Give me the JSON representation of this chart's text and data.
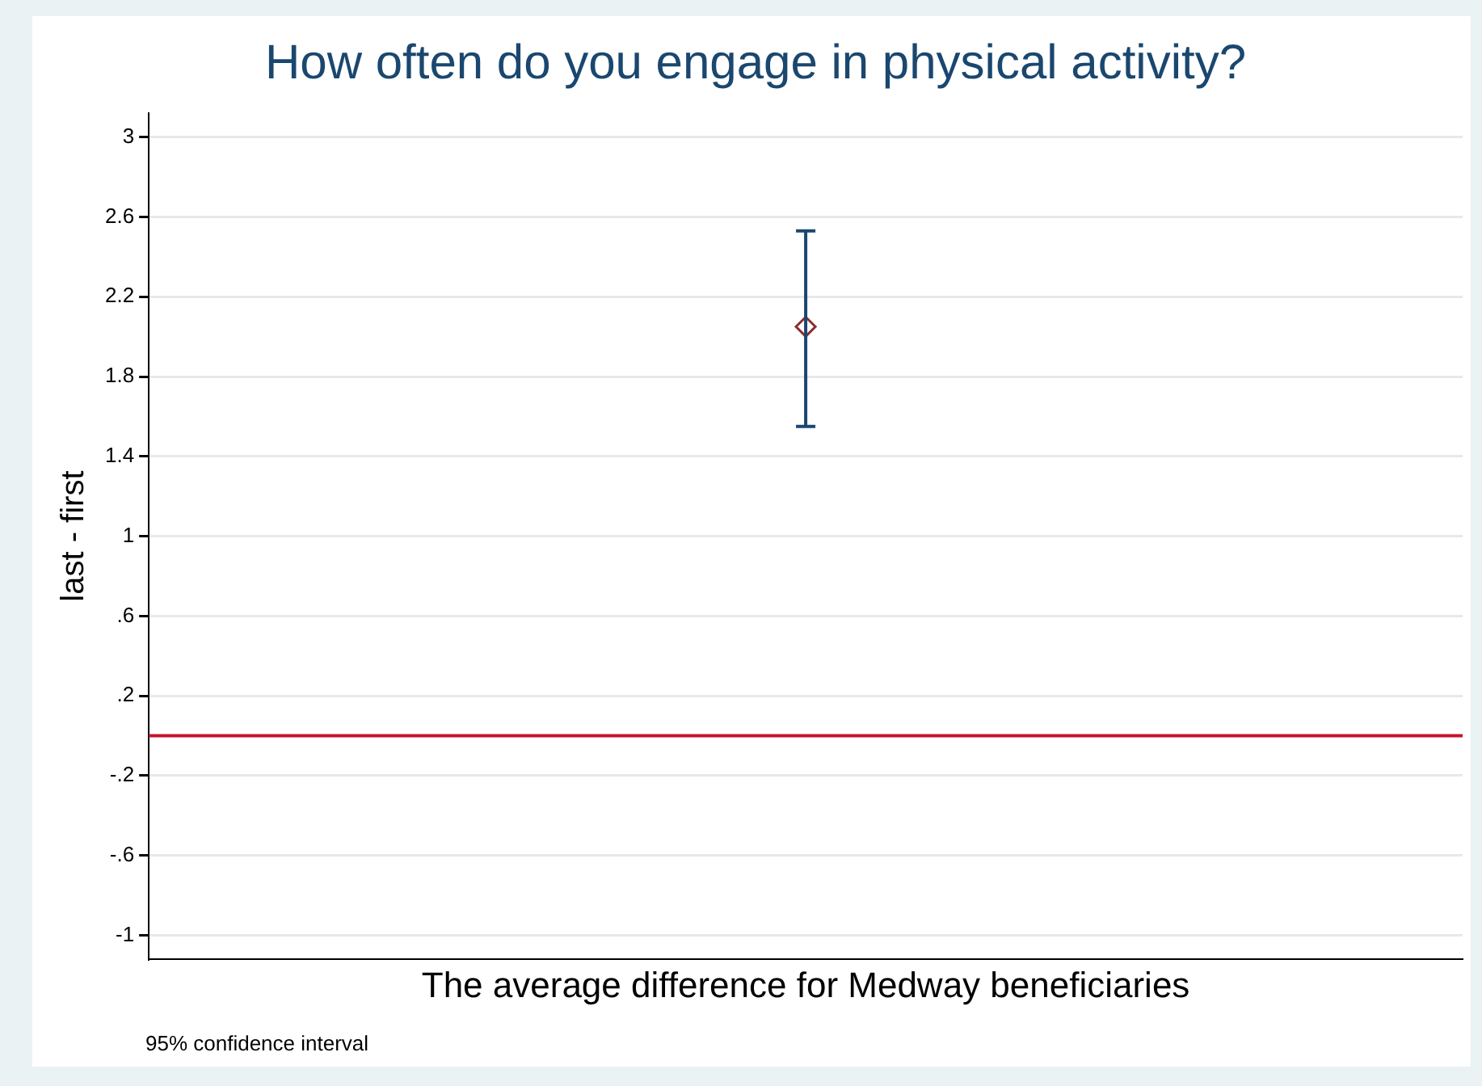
{
  "chart_data": {
    "type": "scatter",
    "title": "How often do you engage in physical activity?",
    "xlabel": "The average difference for Medway beneficiaries",
    "ylabel": "last - first",
    "categories": [
      null
    ],
    "series": [
      {
        "color": "#8b2c2c",
        "values": [
          2.05
        ],
        "errors": [
          [
            1.55,
            2.53
          ]
        ]
      }
    ],
    "marker": "diamond",
    "grid": "y",
    "legend": false,
    "ylim": [
      -1.12,
      3.12
    ],
    "yticks": [
      {
        "value": -1,
        "label": "-1"
      },
      {
        "value": -0.6,
        "label": "-.6"
      },
      {
        "value": -0.2,
        "label": "-.2"
      },
      {
        "value": 0.2,
        "label": ".2"
      },
      {
        "value": 0.6,
        "label": ".6"
      },
      1,
      1.4,
      1.8,
      2.2,
      2.6,
      3
    ],
    "ref_lines": [
      {
        "axis": "y",
        "value": 0,
        "color": "#c8102e"
      }
    ],
    "annotations": [
      "95% confidence interval"
    ]
  }
}
